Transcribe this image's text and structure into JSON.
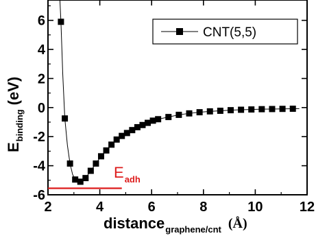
{
  "chart_data": {
    "type": "scatter",
    "series": [
      {
        "name": "CNT(5,5)",
        "x": [
          2.5,
          2.65,
          2.85,
          3.05,
          3.25,
          3.45,
          3.65,
          3.85,
          4.05,
          4.25,
          4.45,
          4.65,
          4.85,
          5.05,
          5.25,
          5.45,
          5.65,
          5.85,
          6.05,
          6.25,
          6.65,
          7.05,
          7.45,
          7.85,
          8.25,
          8.65,
          9.05,
          9.45,
          9.85,
          10.25,
          10.65,
          11.05,
          11.45
        ],
        "y": [
          5.9,
          -0.75,
          -3.85,
          -4.95,
          -5.1,
          -4.85,
          -4.35,
          -3.85,
          -3.35,
          -2.95,
          -2.55,
          -2.2,
          -1.95,
          -1.75,
          -1.55,
          -1.35,
          -1.2,
          -1.05,
          -0.9,
          -0.8,
          -0.65,
          -0.5,
          -0.4,
          -0.32,
          -0.26,
          -0.22,
          -0.18,
          -0.15,
          -0.13,
          -0.11,
          -0.1,
          -0.09,
          -0.08
        ]
      }
    ],
    "curve": {
      "x": [
        2.46,
        2.5,
        2.57,
        2.65,
        2.75,
        2.85,
        2.95,
        3.05,
        3.15,
        3.25,
        3.35,
        3.45,
        3.65,
        3.85,
        4.05,
        4.25,
        4.45,
        4.65,
        4.85,
        5.05,
        5.25,
        5.45,
        5.65,
        5.85,
        6.05,
        6.25,
        6.65,
        7.05,
        7.45,
        7.85,
        8.25,
        8.65,
        9.05,
        9.45,
        9.85,
        10.25,
        10.65,
        11.05,
        11.45,
        11.7
      ],
      "y": [
        7.4,
        5.9,
        2.3,
        -0.75,
        -2.6,
        -3.85,
        -4.6,
        -4.95,
        -5.1,
        -5.1,
        -5.0,
        -4.85,
        -4.35,
        -3.85,
        -3.35,
        -2.95,
        -2.55,
        -2.2,
        -1.95,
        -1.75,
        -1.55,
        -1.35,
        -1.2,
        -1.05,
        -0.9,
        -0.8,
        -0.65,
        -0.5,
        -0.4,
        -0.32,
        -0.26,
        -0.22,
        -0.18,
        -0.15,
        -0.13,
        -0.11,
        -0.1,
        -0.09,
        -0.08,
        -0.07
      ]
    },
    "xlim": [
      2,
      12
    ],
    "ylim": [
      -6,
      7.4
    ],
    "x_ticks": [
      2,
      4,
      6,
      8,
      10,
      12
    ],
    "y_ticks": [
      -6,
      -4,
      -2,
      0,
      2,
      4,
      6
    ],
    "xlabel": {
      "main": "distance",
      "sub": "graphene/cnt",
      "unit": "(Å)"
    },
    "ylabel": {
      "main": "E",
      "sub": "binding",
      "unit": "(eV)"
    },
    "legend": {
      "position": "top-right",
      "label": "CNT(5,5)"
    },
    "annotation": {
      "main": "E",
      "sub": "adh",
      "y": -5.55,
      "x_range": [
        2,
        4.85
      ],
      "color": "#dd1b1b"
    },
    "grid": false,
    "marker_color": "#000000",
    "line_color": "#000000"
  }
}
